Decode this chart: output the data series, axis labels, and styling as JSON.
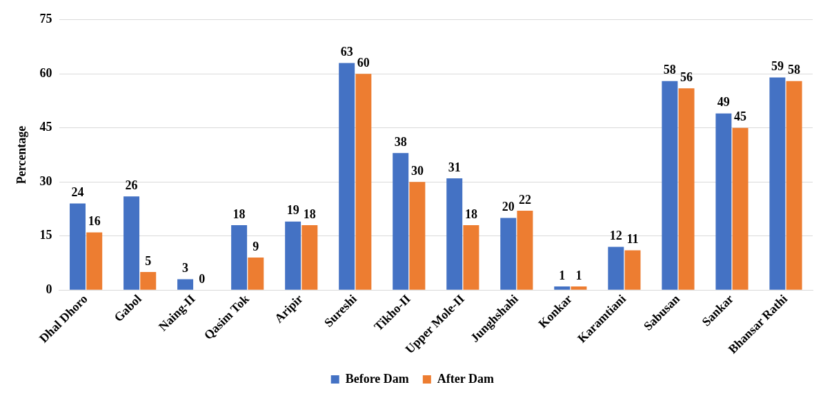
{
  "chart_data": {
    "type": "bar",
    "ylabel": "Percentage",
    "categories": [
      "Dhal Dhoro",
      "Gabol",
      "Naing-II",
      "Qasim Tok",
      "Aripir",
      "Sureshi",
      "Tikho-II",
      "Upper Mole-II",
      "Junghshahi",
      "Konkar",
      "Karamtiani",
      "Sabusan",
      "Sankar",
      "Bhansar Rathi"
    ],
    "series": [
      {
        "name": "Before Dam",
        "color": "#4472c4",
        "values": [
          24,
          26,
          3,
          18,
          19,
          63,
          38,
          31,
          20,
          1,
          12,
          58,
          49,
          59
        ]
      },
      {
        "name": "After Dam",
        "color": "#ed7d31",
        "values": [
          16,
          5,
          0,
          9,
          18,
          60,
          30,
          18,
          22,
          1,
          11,
          56,
          45,
          58
        ]
      }
    ],
    "ylim": [
      0,
      75
    ],
    "yticks": [
      0,
      15,
      30,
      45,
      60,
      75
    ],
    "grid": "y",
    "legend": "bottom",
    "data_labels": true
  }
}
